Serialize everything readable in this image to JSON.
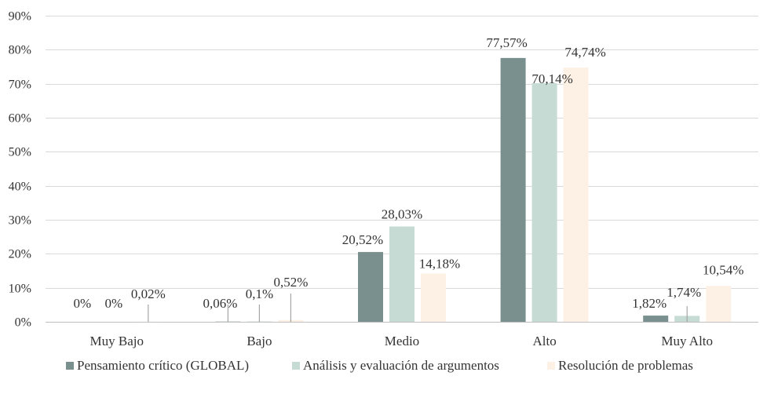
{
  "chart_data": {
    "type": "bar",
    "categories": [
      "Muy Bajo",
      "Bajo",
      "Medio",
      "Alto",
      "Muy Alto"
    ],
    "series": [
      {
        "name": "Pensamiento crítico (GLOBAL)",
        "color": "#7a908f",
        "values": [
          0,
          0.06,
          20.52,
          77.57,
          1.82
        ],
        "labels": [
          "0%",
          "0,06%",
          "20,52%",
          "77,57%",
          "1,82%"
        ]
      },
      {
        "name": "Análisis y evaluación de argumentos",
        "color": "#c5dbd3",
        "values": [
          0,
          0.1,
          28.03,
          70.14,
          1.74
        ],
        "labels": [
          "0%",
          "0,1%",
          "28,03%",
          "70,14%",
          "1,74%"
        ]
      },
      {
        "name": "Resolución de problemas",
        "color": "#fdf1e5",
        "values": [
          0.02,
          0.52,
          14.18,
          74.74,
          10.54
        ],
        "labels": [
          "0,02%",
          "0,52%",
          "14,18%",
          "74,74%",
          "10,54%"
        ]
      }
    ],
    "ylim": [
      0,
      90
    ],
    "yticks": [
      0,
      10,
      20,
      30,
      40,
      50,
      60,
      70,
      80,
      90
    ],
    "ytick_labels": [
      "0%",
      "10%",
      "20%",
      "30%",
      "40%",
      "50%",
      "60%",
      "70%",
      "80%",
      "90%"
    ],
    "grid": true,
    "legend_position": "bottom"
  }
}
